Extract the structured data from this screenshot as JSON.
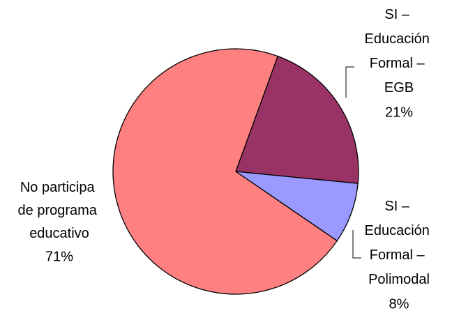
{
  "chart_data": {
    "type": "pie",
    "categories": [
      "SI – Educación Formal – EGB",
      "SI – Educación Formal – Polimodal",
      "No participa de programa educativo"
    ],
    "values": [
      21,
      8,
      71
    ],
    "value_labels": [
      "21%",
      "8%",
      "71%"
    ],
    "colors": [
      "#993366",
      "#9999ff",
      "#ff8080"
    ]
  }
}
